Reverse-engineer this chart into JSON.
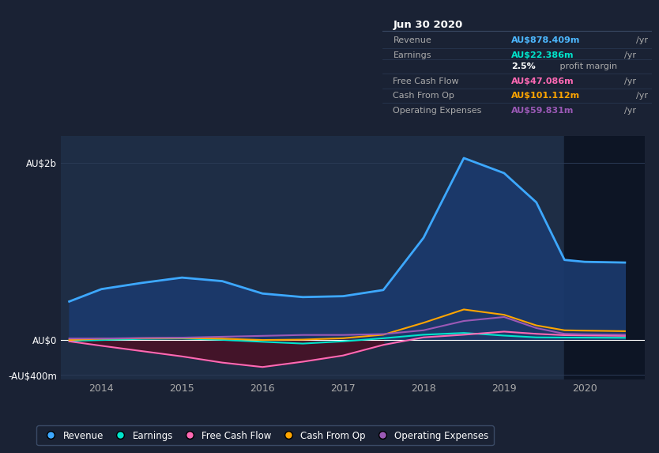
{
  "background_color": "#1a2234",
  "plot_bg_color": "#1e2d45",
  "grid_color": "#2a3a55",
  "title_box": {
    "date": "Jun 30 2020",
    "rows": [
      {
        "label": "Revenue",
        "value": "AU$878.409m",
        "unit": "/yr",
        "color": "#4db8ff"
      },
      {
        "label": "Earnings",
        "value": "AU$22.386m",
        "unit": "/yr",
        "color": "#00e5cc"
      },
      {
        "label": "",
        "value": "2.5%",
        "unit": " profit margin",
        "color": "#ffffff"
      },
      {
        "label": "Free Cash Flow",
        "value": "AU$47.086m",
        "unit": "/yr",
        "color": "#ff69b4"
      },
      {
        "label": "Cash From Op",
        "value": "AU$101.112m",
        "unit": "/yr",
        "color": "#ffa500"
      },
      {
        "label": "Operating Expenses",
        "value": "AU$59.831m",
        "unit": "/yr",
        "color": "#9b59b6"
      }
    ]
  },
  "years": [
    2013.6,
    2014,
    2014.5,
    2015,
    2015.5,
    2016,
    2016.5,
    2017,
    2017.5,
    2018,
    2018.5,
    2019,
    2019.4,
    2019.75,
    2020,
    2020.5
  ],
  "revenue": [
    430,
    570,
    640,
    700,
    660,
    520,
    480,
    490,
    560,
    1150,
    2050,
    1880,
    1550,
    900,
    878,
    870
  ],
  "earnings": [
    -15,
    -5,
    8,
    12,
    -3,
    -25,
    -45,
    -20,
    15,
    55,
    75,
    45,
    25,
    23,
    22,
    20
  ],
  "free_cash_flow": [
    -20,
    -70,
    -130,
    -190,
    -260,
    -310,
    -250,
    -180,
    -60,
    25,
    55,
    90,
    65,
    50,
    47,
    42
  ],
  "cash_from_op": [
    -5,
    10,
    15,
    18,
    10,
    -5,
    0,
    15,
    55,
    190,
    340,
    280,
    160,
    105,
    101,
    95
  ],
  "operating_expenses": [
    12,
    12,
    18,
    22,
    32,
    42,
    52,
    52,
    62,
    105,
    210,
    255,
    130,
    65,
    60,
    55
  ],
  "ylim": [
    -450,
    2300
  ],
  "ytick_vals": [
    -400,
    0,
    2000
  ],
  "ytick_labels": [
    "-AU$400m",
    "AU$0",
    "AU$2b"
  ],
  "xticks": [
    2014,
    2015,
    2016,
    2017,
    2018,
    2019,
    2020
  ],
  "xmin": 2013.5,
  "xmax": 2020.75,
  "shaded_region_start": 2019.75,
  "colors": {
    "revenue": "#3da8ff",
    "earnings": "#00e5cc",
    "free_cash_flow": "#ff69b4",
    "cash_from_op": "#ffa500",
    "operating_expenses": "#9b59b6"
  },
  "legend": [
    {
      "label": "Revenue",
      "color": "#3da8ff"
    },
    {
      "label": "Earnings",
      "color": "#00e5cc"
    },
    {
      "label": "Free Cash Flow",
      "color": "#ff69b4"
    },
    {
      "label": "Cash From Op",
      "color": "#ffa500"
    },
    {
      "label": "Operating Expenses",
      "color": "#9b59b6"
    }
  ]
}
